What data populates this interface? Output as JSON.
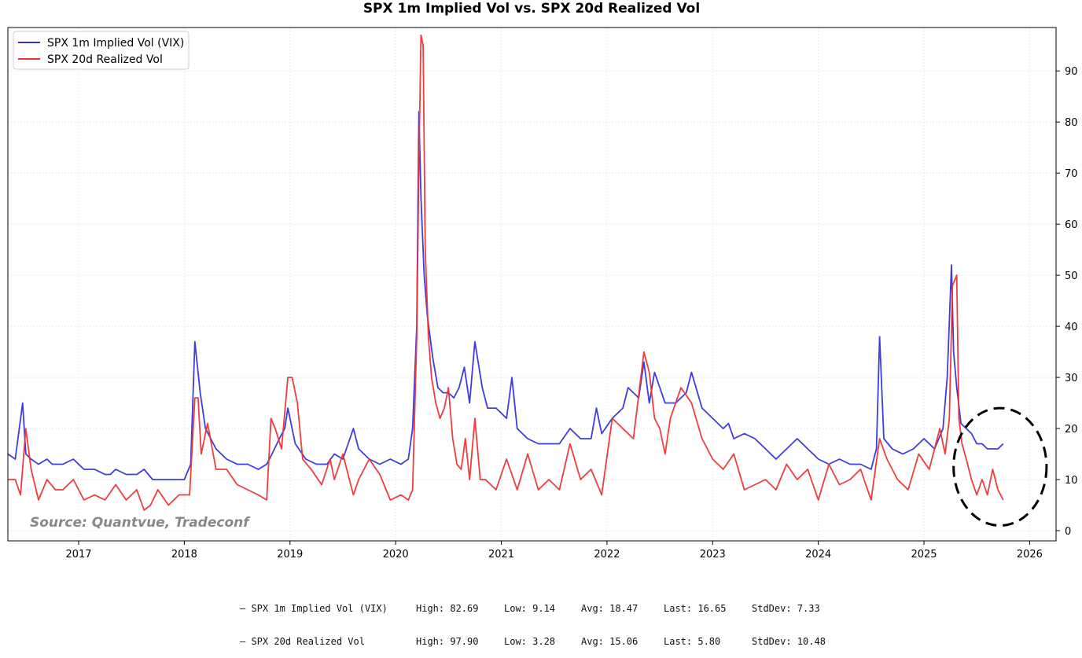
{
  "chart_data": {
    "type": "line",
    "title": "SPX 1m Implied Vol vs. SPX 20d Realized Vol",
    "xlabel": "",
    "ylabel": "",
    "x_range": [
      2016.33,
      2026.25
    ],
    "ylim": [
      -2,
      98.5
    ],
    "x_ticks": [
      "2017",
      "2018",
      "2019",
      "2020",
      "2021",
      "2022",
      "2023",
      "2024",
      "2025",
      "2026"
    ],
    "y_ticks": [
      "0",
      "10",
      "20",
      "30",
      "40",
      "50",
      "60",
      "70",
      "80",
      "90"
    ],
    "grid": true,
    "legend_position": "top-left",
    "annotation": "Source: Quantvue, Tradeconf",
    "highlight": {
      "shape": "dashed-ellipse",
      "x_center": 2025.72,
      "y_center": 12.5,
      "x_radius": 0.44,
      "y_radius": 11.5
    },
    "series": [
      {
        "name": "SPX 1m Implied Vol (VIX)",
        "color": "#3333dd",
        "x": [
          2016.33,
          2016.4,
          2016.47,
          2016.5,
          2016.55,
          2016.62,
          2016.7,
          2016.75,
          2016.85,
          2016.95,
          2017.05,
          2017.15,
          2017.25,
          2017.3,
          2017.35,
          2017.45,
          2017.55,
          2017.62,
          2017.7,
          2017.8,
          2017.9,
          2018.0,
          2018.06,
          2018.1,
          2018.15,
          2018.2,
          2018.25,
          2018.3,
          2018.4,
          2018.5,
          2018.6,
          2018.7,
          2018.78,
          2018.83,
          2018.9,
          2018.95,
          2018.98,
          2019.05,
          2019.15,
          2019.25,
          2019.35,
          2019.42,
          2019.5,
          2019.6,
          2019.65,
          2019.75,
          2019.85,
          2019.95,
          2020.05,
          2020.12,
          2020.16,
          2020.2,
          2020.22,
          2020.24,
          2020.27,
          2020.3,
          2020.35,
          2020.4,
          2020.45,
          2020.5,
          2020.55,
          2020.6,
          2020.65,
          2020.7,
          2020.75,
          2020.82,
          2020.87,
          2020.95,
          2021.05,
          2021.1,
          2021.15,
          2021.25,
          2021.35,
          2021.45,
          2021.55,
          2021.65,
          2021.75,
          2021.85,
          2021.9,
          2021.95,
          2022.05,
          2022.15,
          2022.2,
          2022.3,
          2022.35,
          2022.4,
          2022.45,
          2022.55,
          2022.65,
          2022.75,
          2022.8,
          2022.9,
          2023.0,
          2023.1,
          2023.15,
          2023.2,
          2023.3,
          2023.4,
          2023.5,
          2023.6,
          2023.7,
          2023.8,
          2023.85,
          2023.9,
          2024.0,
          2024.1,
          2024.2,
          2024.3,
          2024.4,
          2024.5,
          2024.55,
          2024.58,
          2024.62,
          2024.7,
          2024.8,
          2024.9,
          2025.0,
          2025.1,
          2025.18,
          2025.22,
          2025.26,
          2025.28,
          2025.31,
          2025.35,
          2025.4,
          2025.45,
          2025.5,
          2025.55,
          2025.6,
          2025.65,
          2025.7,
          2025.75
        ],
        "values": [
          15,
          14,
          25,
          15,
          14,
          13,
          14,
          13,
          13,
          14,
          12,
          12,
          11,
          11,
          12,
          11,
          11,
          12,
          10,
          10,
          10,
          10,
          13,
          37,
          27,
          20,
          18,
          16,
          14,
          13,
          13,
          12,
          13,
          15,
          18,
          20,
          24,
          17,
          14,
          13,
          13,
          15,
          14,
          20,
          16,
          14,
          13,
          14,
          13,
          14,
          20,
          40,
          82,
          65,
          50,
          42,
          34,
          28,
          27,
          27,
          26,
          28,
          32,
          25,
          37,
          28,
          24,
          24,
          22,
          30,
          20,
          18,
          17,
          17,
          17,
          20,
          18,
          18,
          24,
          19,
          22,
          24,
          28,
          26,
          33,
          25,
          31,
          25,
          25,
          27,
          31,
          24,
          22,
          20,
          21,
          18,
          19,
          18,
          16,
          14,
          16,
          18,
          17,
          16,
          14,
          13,
          14,
          13,
          13,
          12,
          16,
          38,
          18,
          16,
          15,
          16,
          18,
          16,
          20,
          30,
          52,
          35,
          28,
          21,
          20,
          19,
          17,
          17,
          16,
          16,
          16,
          17
        ]
      },
      {
        "name": "SPX 20d Realized Vol",
        "color": "#ee3333",
        "x": [
          2016.33,
          2016.4,
          2016.45,
          2016.5,
          2016.55,
          2016.62,
          2016.7,
          2016.78,
          2016.85,
          2016.95,
          2017.05,
          2017.15,
          2017.25,
          2017.35,
          2017.45,
          2017.55,
          2017.62,
          2017.68,
          2017.75,
          2017.85,
          2017.95,
          2018.05,
          2018.1,
          2018.13,
          2018.16,
          2018.22,
          2018.3,
          2018.4,
          2018.5,
          2018.6,
          2018.7,
          2018.78,
          2018.82,
          2018.86,
          2018.92,
          2018.98,
          2019.02,
          2019.07,
          2019.12,
          2019.2,
          2019.3,
          2019.38,
          2019.42,
          2019.5,
          2019.6,
          2019.65,
          2019.75,
          2019.85,
          2019.95,
          2020.05,
          2020.12,
          2020.16,
          2020.2,
          2020.22,
          2020.24,
          2020.26,
          2020.28,
          2020.31,
          2020.34,
          2020.38,
          2020.42,
          2020.46,
          2020.5,
          2020.54,
          2020.58,
          2020.62,
          2020.66,
          2020.7,
          2020.75,
          2020.8,
          2020.85,
          2020.95,
          2021.05,
          2021.15,
          2021.25,
          2021.35,
          2021.45,
          2021.55,
          2021.65,
          2021.75,
          2021.85,
          2021.95,
          2022.05,
          2022.15,
          2022.25,
          2022.35,
          2022.4,
          2022.45,
          2022.5,
          2022.55,
          2022.6,
          2022.7,
          2022.8,
          2022.9,
          2023.0,
          2023.1,
          2023.2,
          2023.3,
          2023.4,
          2023.5,
          2023.6,
          2023.7,
          2023.8,
          2023.9,
          2024.0,
          2024.1,
          2024.2,
          2024.3,
          2024.4,
          2024.5,
          2024.58,
          2024.65,
          2024.75,
          2024.85,
          2024.95,
          2025.05,
          2025.15,
          2025.2,
          2025.24,
          2025.27,
          2025.31,
          2025.33,
          2025.36,
          2025.4,
          2025.45,
          2025.5,
          2025.55,
          2025.6,
          2025.65,
          2025.7,
          2025.75
        ],
        "values": [
          10,
          10,
          7,
          20,
          12,
          6,
          10,
          8,
          8,
          10,
          6,
          7,
          6,
          9,
          6,
          8,
          4,
          5,
          8,
          5,
          7,
          7,
          26,
          26,
          15,
          21,
          12,
          12,
          9,
          8,
          7,
          6,
          22,
          20,
          16,
          30,
          30,
          25,
          14,
          12,
          9,
          14,
          10,
          15,
          7,
          10,
          14,
          11,
          6,
          7,
          6,
          8,
          38,
          72,
          97,
          95,
          55,
          38,
          30,
          25,
          22,
          24,
          28,
          18,
          13,
          12,
          18,
          10,
          22,
          10,
          10,
          8,
          14,
          8,
          15,
          8,
          10,
          8,
          17,
          10,
          12,
          7,
          22,
          20,
          18,
          35,
          31,
          22,
          20,
          15,
          22,
          28,
          25,
          18,
          14,
          12,
          15,
          8,
          9,
          10,
          8,
          13,
          10,
          12,
          6,
          13,
          9,
          10,
          12,
          6,
          18,
          14,
          10,
          8,
          15,
          12,
          20,
          15,
          22,
          48,
          50,
          22,
          17,
          14,
          10,
          7,
          10,
          7,
          12,
          8,
          6
        ]
      }
    ],
    "stats": [
      {
        "name": "— SPX 1m Implied Vol (VIX)",
        "high": "High: 82.69",
        "low": "Low: 9.14",
        "avg": "Avg: 18.47",
        "last": "Last: 16.65",
        "stddev": "StdDev: 7.33"
      },
      {
        "name": "— SPX 20d Realized Vol",
        "high": "High: 97.90",
        "low": "Low: 3.28",
        "avg": "Avg: 15.06",
        "last": "Last: 5.80",
        "stddev": "StdDev: 10.48"
      }
    ]
  }
}
